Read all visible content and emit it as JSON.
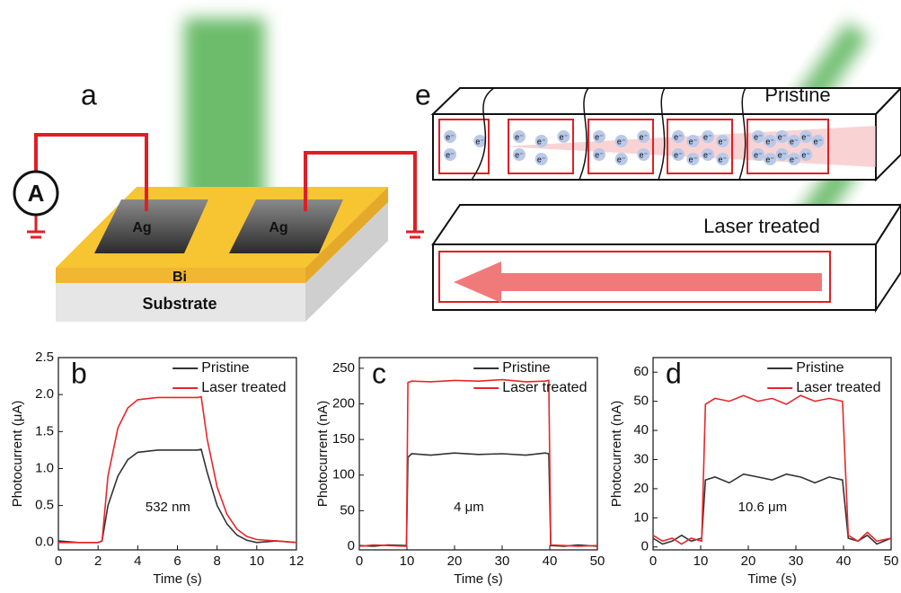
{
  "diagram_a": {
    "label": "a",
    "meter": "A",
    "electrodes": [
      "Ag",
      "Ag"
    ],
    "film": "Bi",
    "substrate": "Substrate"
  },
  "diagram_e": {
    "label": "e",
    "top": "Pristine",
    "bottom": "Laser treated",
    "electron": "e⁻"
  },
  "chart_data": [
    {
      "type": "line",
      "panel": "b",
      "annotation": "532 nm",
      "xlabel": "Time (s)",
      "ylabel": "Photocurrent (μA)",
      "xlim": [
        0,
        12
      ],
      "xticks": [
        0,
        2,
        4,
        6,
        8,
        10,
        12
      ],
      "ylim": [
        -0.1,
        2.5
      ],
      "yticks": [
        {
          "value": 0,
          "label": "0.0"
        },
        0.5,
        {
          "value": 1,
          "label": "1.0"
        },
        1.5,
        {
          "value": 2,
          "label": "2.0"
        },
        2.5
      ],
      "x": [
        0,
        1,
        2,
        2.2,
        2.5,
        3,
        3.5,
        4,
        5,
        6,
        7,
        7.2,
        7.5,
        8,
        8.5,
        9,
        9.5,
        10,
        11,
        12
      ],
      "series": [
        {
          "name": "Pristine",
          "color": "#333333",
          "values": [
            0.02,
            0,
            0,
            0.02,
            0.5,
            0.9,
            1.12,
            1.22,
            1.25,
            1.25,
            1.25,
            1.26,
            0.95,
            0.5,
            0.25,
            0.1,
            0.03,
            0,
            0.02,
            0
          ]
        },
        {
          "name": "Laser treated",
          "color": "#e8262a",
          "values": [
            0,
            0,
            0,
            0.02,
            0.9,
            1.55,
            1.82,
            1.93,
            1.96,
            1.96,
            1.96,
            1.97,
            1.4,
            0.75,
            0.38,
            0.18,
            0.08,
            0.04,
            0.02,
            0
          ]
        }
      ]
    },
    {
      "type": "line",
      "panel": "c",
      "annotation": "4 μm",
      "xlabel": "Time (s)",
      "ylabel": "Photocurrent (nA)",
      "xlim": [
        0,
        50
      ],
      "xticks": [
        0,
        10,
        20,
        30,
        40,
        50
      ],
      "ylim": [
        -5,
        265
      ],
      "yticks": [
        0,
        50,
        100,
        150,
        200,
        250
      ],
      "x": [
        0,
        3,
        6,
        9.9,
        10.2,
        11,
        15,
        20,
        25,
        30,
        35,
        39,
        39.8,
        40.2,
        43,
        46,
        50
      ],
      "series": [
        {
          "name": "Pristine",
          "color": "#333333",
          "values": [
            1,
            0,
            2,
            1,
            125,
            130,
            128,
            131,
            129,
            130,
            128,
            131,
            130,
            1,
            0,
            2,
            0
          ]
        },
        {
          "name": "Laser treated",
          "color": "#e8262a",
          "values": [
            0,
            2,
            1,
            0,
            230,
            232,
            231,
            233,
            232,
            234,
            231,
            232,
            233,
            2,
            1,
            0,
            1
          ]
        }
      ]
    },
    {
      "type": "line",
      "panel": "d",
      "annotation": "10.6 μm",
      "xlabel": "Time (s)",
      "ylabel": "Photocurrent (nA)",
      "xlim": [
        0,
        50
      ],
      "xticks": [
        0,
        10,
        20,
        30,
        40,
        50
      ],
      "ylim": [
        -1,
        65
      ],
      "yticks": [
        0,
        10,
        20,
        30,
        40,
        50,
        60
      ],
      "x": [
        0,
        2,
        4,
        6,
        8,
        10.2,
        11,
        13,
        16,
        19,
        22,
        25,
        28,
        31,
        34,
        37,
        39.8,
        41,
        43,
        45,
        47,
        50
      ],
      "series": [
        {
          "name": "Pristine",
          "color": "#333333",
          "values": [
            3,
            1,
            2,
            4,
            2,
            3,
            23,
            24,
            22,
            25,
            24,
            23,
            25,
            24,
            22,
            24,
            23,
            3,
            2,
            4,
            1,
            3
          ]
        },
        {
          "name": "Laser treated",
          "color": "#e8262a",
          "values": [
            4,
            2,
            3,
            1,
            3,
            2,
            49,
            51,
            50,
            52,
            50,
            51,
            49,
            52,
            50,
            51,
            50,
            4,
            2,
            5,
            2,
            3
          ]
        }
      ]
    }
  ]
}
